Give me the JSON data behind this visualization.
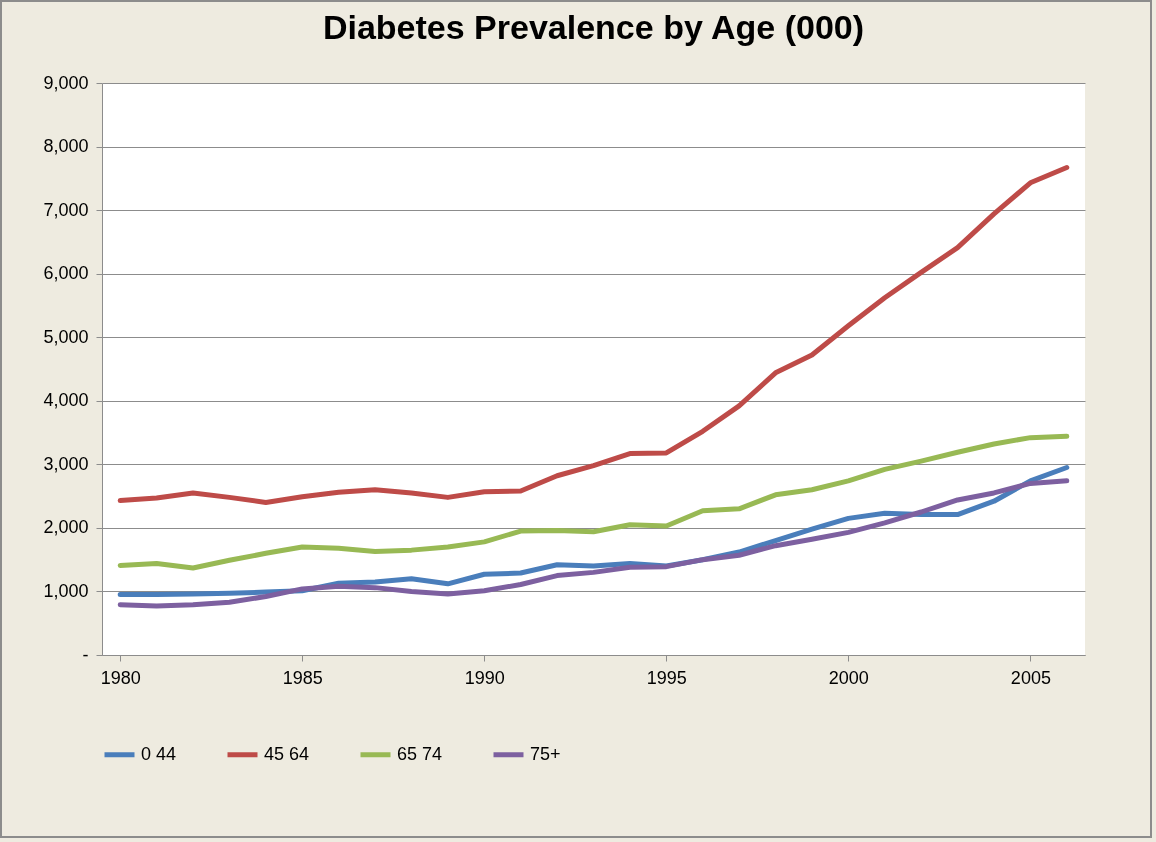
{
  "chart_data": {
    "type": "line",
    "title": "Diabetes Prevalence by Age (000)",
    "x": [
      1980,
      1981,
      1982,
      1983,
      1984,
      1985,
      1986,
      1987,
      1988,
      1989,
      1990,
      1991,
      1992,
      1993,
      1994,
      1995,
      1996,
      1997,
      1998,
      1999,
      2000,
      2001,
      2002,
      2003,
      2004,
      2005,
      2006
    ],
    "xlim": [
      1979.5,
      2006.5
    ],
    "xticks": [
      1980,
      1985,
      1990,
      1995,
      2000,
      2005
    ],
    "ylim": [
      0,
      9000
    ],
    "yticks": [
      {
        "value": 0,
        "label": "-"
      },
      {
        "value": 1000,
        "label": "1,000"
      },
      {
        "value": 2000,
        "label": "2,000"
      },
      {
        "value": 3000,
        "label": "3,000"
      },
      {
        "value": 4000,
        "label": "4,000"
      },
      {
        "value": 5000,
        "label": "5,000"
      },
      {
        "value": 6000,
        "label": "6,000"
      },
      {
        "value": 7000,
        "label": "7,000"
      },
      {
        "value": 8000,
        "label": "8,000"
      },
      {
        "value": 9000,
        "label": "9,000"
      }
    ],
    "grid": "y",
    "legend": "bottom",
    "marker": "none",
    "line_style": "solid",
    "series": [
      {
        "name": "0 44",
        "color": "#4a7ebb",
        "values": [
          950,
          950,
          960,
          970,
          990,
          1010,
          1130,
          1150,
          1200,
          1120,
          1270,
          1290,
          1420,
          1400,
          1440,
          1400,
          1500,
          1620,
          1800,
          1980,
          2150,
          2230,
          2210,
          2210,
          2420,
          2740,
          2950
        ]
      },
      {
        "name": "45 64",
        "color": "#be4b48",
        "values": [
          2430,
          2470,
          2550,
          2480,
          2400,
          2490,
          2560,
          2600,
          2550,
          2480,
          2570,
          2580,
          2820,
          2980,
          3170,
          3180,
          3520,
          3920,
          4440,
          4720,
          5180,
          5620,
          6020,
          6410,
          6940,
          7430,
          7670
        ]
      },
      {
        "name": "65 74",
        "color": "#98b954",
        "values": [
          1410,
          1440,
          1370,
          1490,
          1600,
          1700,
          1680,
          1630,
          1650,
          1700,
          1780,
          1950,
          1960,
          1940,
          2050,
          2030,
          2270,
          2300,
          2520,
          2600,
          2740,
          2920,
          3050,
          3190,
          3320,
          3420,
          3440
        ]
      },
      {
        "name": "75+",
        "color": "#7d60a0",
        "values": [
          790,
          770,
          790,
          830,
          920,
          1040,
          1080,
          1060,
          1000,
          960,
          1010,
          1110,
          1250,
          1300,
          1380,
          1390,
          1500,
          1570,
          1720,
          1820,
          1930,
          2080,
          2250,
          2440,
          2550,
          2700,
          2740
        ]
      }
    ]
  }
}
